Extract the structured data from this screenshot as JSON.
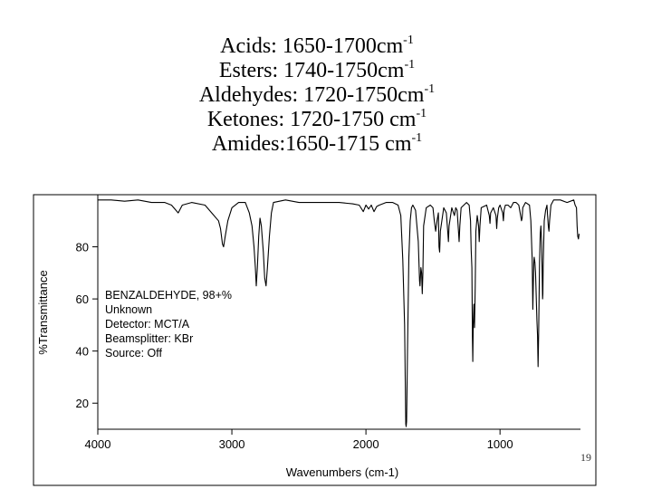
{
  "slide": {
    "carbonyl_ranges": [
      {
        "label": "Acids: 1650-1700cm",
        "sup": "-1"
      },
      {
        "label": "Esters: 1740-1750cm",
        "sup": "-1"
      },
      {
        "label": "Aldehydes: 1720-1750cm",
        "sup": "-1"
      },
      {
        "label": "Ketones: 1720-1750 cm",
        "sup": "-1"
      },
      {
        "label": "Amides:1650-1715 cm",
        "sup": "-1"
      }
    ],
    "slide_number": "19"
  },
  "chart_data": {
    "type": "line",
    "title": "",
    "xlabel": "Wavenumbers (cm-1)",
    "ylabel": "%Transmittance",
    "xlim": [
      4000,
      400
    ],
    "ylim": [
      10,
      100
    ],
    "x_reversed": true,
    "grid": false,
    "x_ticks": [
      "4000",
      "3000",
      "2000",
      "1000"
    ],
    "x_tick_values": [
      4000,
      3000,
      2000,
      1000
    ],
    "y_ticks": [
      "80",
      "60",
      "40",
      "20"
    ],
    "y_tick_values": [
      80,
      60,
      40,
      20
    ],
    "annotation_lines": [
      "BENZALDEHYDE, 98+%",
      "Unknown",
      "Detector:  MCT/A",
      "Beamsplitter:  KBr",
      "Source:  Off"
    ],
    "series": [
      {
        "values": [
          [
            4000,
            98
          ],
          [
            3900,
            98
          ],
          [
            3800,
            97.5
          ],
          [
            3700,
            98
          ],
          [
            3600,
            97
          ],
          [
            3500,
            97
          ],
          [
            3450,
            96
          ],
          [
            3400,
            93
          ],
          [
            3370,
            96
          ],
          [
            3300,
            97
          ],
          [
            3200,
            96
          ],
          [
            3150,
            93
          ],
          [
            3100,
            90
          ],
          [
            3085,
            87
          ],
          [
            3070,
            81
          ],
          [
            3062,
            80
          ],
          [
            3050,
            84
          ],
          [
            3030,
            90
          ],
          [
            3000,
            95
          ],
          [
            2950,
            97
          ],
          [
            2900,
            97
          ],
          [
            2870,
            93
          ],
          [
            2850,
            88
          ],
          [
            2835,
            80
          ],
          [
            2825,
            72
          ],
          [
            2818,
            65
          ],
          [
            2810,
            72
          ],
          [
            2800,
            84
          ],
          [
            2790,
            91
          ],
          [
            2780,
            88
          ],
          [
            2765,
            78
          ],
          [
            2755,
            68
          ],
          [
            2745,
            65
          ],
          [
            2735,
            72
          ],
          [
            2720,
            84
          ],
          [
            2705,
            93
          ],
          [
            2690,
            97
          ],
          [
            2600,
            98
          ],
          [
            2500,
            97
          ],
          [
            2400,
            97
          ],
          [
            2300,
            97
          ],
          [
            2200,
            97
          ],
          [
            2100,
            96.5
          ],
          [
            2050,
            96
          ],
          [
            2020,
            93.5
          ],
          [
            2000,
            96
          ],
          [
            1980,
            94.5
          ],
          [
            1960,
            96
          ],
          [
            1940,
            93.5
          ],
          [
            1920,
            95.5
          ],
          [
            1900,
            96
          ],
          [
            1850,
            97
          ],
          [
            1800,
            97
          ],
          [
            1760,
            96
          ],
          [
            1740,
            92
          ],
          [
            1725,
            75
          ],
          [
            1712,
            50
          ],
          [
            1703,
            12
          ],
          [
            1700,
            11
          ],
          [
            1697,
            13
          ],
          [
            1690,
            40
          ],
          [
            1680,
            76
          ],
          [
            1670,
            90
          ],
          [
            1660,
            95
          ],
          [
            1650,
            96
          ],
          [
            1630,
            94
          ],
          [
            1610,
            82
          ],
          [
            1600,
            67
          ],
          [
            1597,
            65
          ],
          [
            1590,
            72
          ],
          [
            1585,
            70
          ],
          [
            1580,
            62
          ],
          [
            1575,
            70
          ],
          [
            1570,
            88
          ],
          [
            1550,
            95
          ],
          [
            1520,
            96
          ],
          [
            1500,
            95
          ],
          [
            1490,
            90
          ],
          [
            1480,
            86
          ],
          [
            1470,
            90
          ],
          [
            1460,
            93
          ],
          [
            1455,
            80
          ],
          [
            1450,
            78
          ],
          [
            1445,
            86
          ],
          [
            1420,
            95
          ],
          [
            1400,
            93
          ],
          [
            1390,
            86
          ],
          [
            1385,
            82
          ],
          [
            1380,
            88
          ],
          [
            1360,
            95
          ],
          [
            1340,
            92
          ],
          [
            1330,
            95
          ],
          [
            1320,
            94
          ],
          [
            1310,
            86
          ],
          [
            1305,
            82
          ],
          [
            1300,
            88
          ],
          [
            1290,
            95
          ],
          [
            1250,
            97
          ],
          [
            1230,
            96
          ],
          [
            1220,
            90
          ],
          [
            1215,
            79
          ],
          [
            1210,
            72
          ],
          [
            1206,
            45
          ],
          [
            1203,
            36
          ],
          [
            1200,
            50
          ],
          [
            1195,
            58
          ],
          [
            1190,
            49
          ],
          [
            1185,
            65
          ],
          [
            1180,
            86
          ],
          [
            1170,
            92
          ],
          [
            1160,
            88
          ],
          [
            1155,
            82
          ],
          [
            1150,
            88
          ],
          [
            1140,
            95
          ],
          [
            1100,
            96
          ],
          [
            1080,
            92
          ],
          [
            1075,
            89
          ],
          [
            1070,
            93
          ],
          [
            1050,
            95
          ],
          [
            1030,
            92
          ],
          [
            1025,
            87
          ],
          [
            1020,
            91
          ],
          [
            1010,
            95
          ],
          [
            1000,
            96
          ],
          [
            980,
            93
          ],
          [
            975,
            90
          ],
          [
            970,
            94
          ],
          [
            960,
            96
          ],
          [
            940,
            96
          ],
          [
            920,
            95
          ],
          [
            900,
            97
          ],
          [
            880,
            97
          ],
          [
            860,
            96
          ],
          [
            850,
            93
          ],
          [
            840,
            90
          ],
          [
            835,
            91
          ],
          [
            830,
            95
          ],
          [
            810,
            97
          ],
          [
            780,
            96
          ],
          [
            770,
            90
          ],
          [
            760,
            75
          ],
          [
            755,
            56
          ],
          [
            750,
            70
          ],
          [
            748,
            74
          ],
          [
            745,
            76
          ],
          [
            740,
            74
          ],
          [
            735,
            70
          ],
          [
            725,
            52
          ],
          [
            720,
            46
          ],
          [
            716,
            34
          ],
          [
            712,
            46
          ],
          [
            705,
            74
          ],
          [
            700,
            85
          ],
          [
            695,
            88
          ],
          [
            690,
            82
          ],
          [
            685,
            68
          ],
          [
            682,
            60
          ],
          [
            680,
            62
          ],
          [
            678,
            72
          ],
          [
            670,
            90
          ],
          [
            660,
            94
          ],
          [
            650,
            96
          ],
          [
            645,
            92
          ],
          [
            640,
            88
          ],
          [
            635,
            86
          ],
          [
            630,
            90
          ],
          [
            620,
            96
          ],
          [
            600,
            98
          ],
          [
            550,
            98
          ],
          [
            500,
            97
          ],
          [
            450,
            98
          ],
          [
            440,
            96
          ],
          [
            430,
            95
          ],
          [
            425,
            88
          ],
          [
            420,
            84
          ],
          [
            415,
            83
          ],
          [
            410,
            85
          ]
        ]
      }
    ]
  }
}
